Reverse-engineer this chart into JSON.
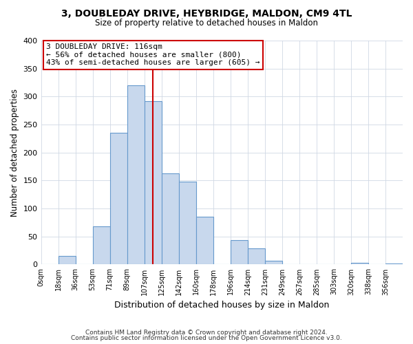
{
  "title1": "3, DOUBLEDAY DRIVE, HEYBRIDGE, MALDON, CM9 4TL",
  "title2": "Size of property relative to detached houses in Maldon",
  "xlabel": "Distribution of detached houses by size in Maldon",
  "ylabel": "Number of detached properties",
  "bar_labels": [
    "0sqm",
    "18sqm",
    "36sqm",
    "53sqm",
    "71sqm",
    "89sqm",
    "107sqm",
    "125sqm",
    "142sqm",
    "160sqm",
    "178sqm",
    "196sqm",
    "214sqm",
    "231sqm",
    "249sqm",
    "267sqm",
    "285sqm",
    "303sqm",
    "320sqm",
    "338sqm",
    "356sqm"
  ],
  "bar_values": [
    0,
    15,
    0,
    68,
    235,
    320,
    292,
    163,
    148,
    85,
    0,
    44,
    29,
    7,
    0,
    0,
    0,
    0,
    3,
    0,
    2
  ],
  "bar_color": "#c8d8ed",
  "bar_edge_color": "#6699cc",
  "vline_color": "#cc0000",
  "annotation_title": "3 DOUBLEDAY DRIVE: 116sqm",
  "annotation_line1": "← 56% of detached houses are smaller (800)",
  "annotation_line2": "43% of semi-detached houses are larger (605) →",
  "annotation_box_color": "#ffffff",
  "annotation_box_edge": "#cc0000",
  "footer1": "Contains HM Land Registry data © Crown copyright and database right 2024.",
  "footer2": "Contains public sector information licensed under the Open Government Licence v3.0.",
  "ylim": [
    0,
    400
  ],
  "yticks": [
    0,
    50,
    100,
    150,
    200,
    250,
    300,
    350,
    400
  ],
  "background_color": "#ffffff",
  "grid_color": "#d0d8e4"
}
